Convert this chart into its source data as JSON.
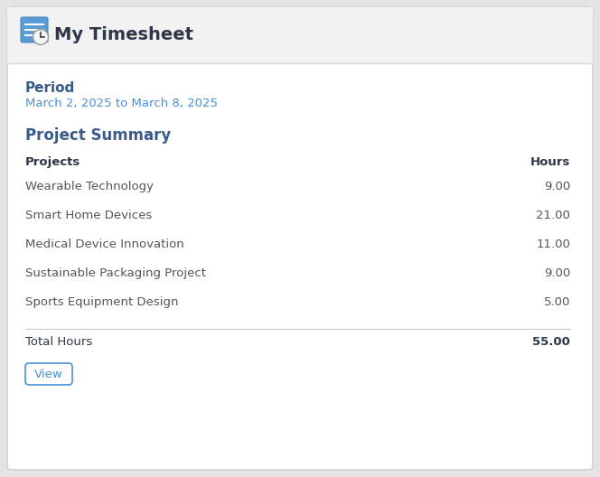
{
  "title": "My Timesheet",
  "period_label": "Period",
  "period_value": "March 2, 2025 to March 8, 2025",
  "section_title": "Project Summary",
  "col_project": "Projects",
  "col_hours": "Hours",
  "projects": [
    {
      "name": "Wearable Technology",
      "hours": "9.00"
    },
    {
      "name": "Smart Home Devices",
      "hours": "21.00"
    },
    {
      "name": "Medical Device Innovation",
      "hours": "11.00"
    },
    {
      "name": "Sustainable Packaging Project",
      "hours": "9.00"
    },
    {
      "name": "Sports Equipment Design",
      "hours": "5.00"
    }
  ],
  "total_label": "Total Hours",
  "total_hours": "55.00",
  "button_label": "View",
  "bg_outer": "#e4e4e4",
  "bg_card": "#ffffff",
  "header_bg": "#f2f2f2",
  "header_title_color": "#2d3748",
  "period_label_color": "#3a5a8a",
  "period_value_color": "#4a90d9",
  "section_title_color": "#3a5a8a",
  "col_header_color": "#2d3748",
  "row_text_color": "#555555",
  "total_text_color": "#2d3748",
  "divider_color": "#cccccc",
  "button_text_color": "#4a90d9",
  "button_border_color": "#4a90d9",
  "card_border_color": "#d0d0d0",
  "header_border_color": "#d8d8d8"
}
